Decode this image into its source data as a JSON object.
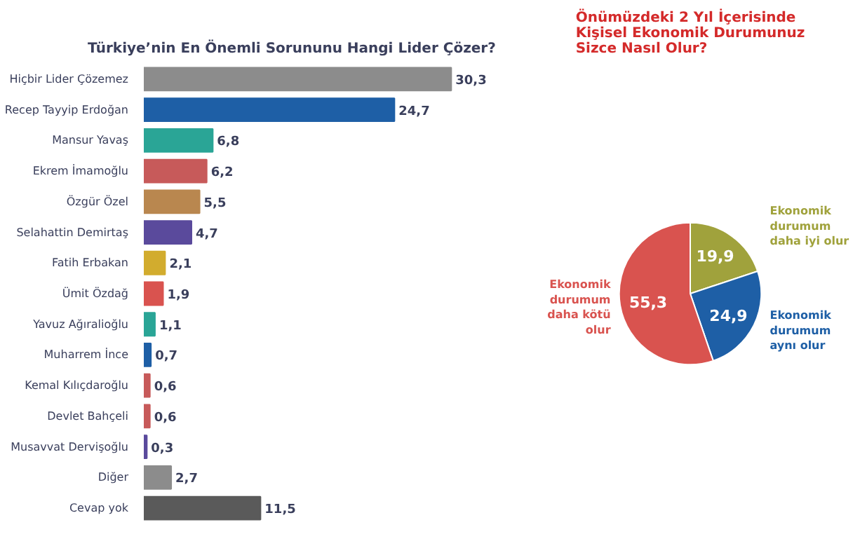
{
  "chart_data": [
    {
      "type": "bar",
      "orientation": "horizontal",
      "title": "Türkiye’nin En Önemli Sorununu Hangi Lider Çözer?",
      "data_labels": true,
      "grid": false,
      "categories": [
        "Hiçbir Lider Çözemez",
        "Recep Tayyip Erdoğan",
        "Mansur Yavaş",
        "Ekrem İmamoğlu",
        "Özgür Özel",
        "Selahattin Demirtaş",
        "Fatih Erbakan",
        "Ümit Özdağ",
        "Yavuz Ağıralioğlu",
        "Muharrem İnce",
        "Kemal Kılıçdaroğlu",
        "Devlet Bahçeli",
        "Musavvat Dervişoğlu",
        "Diğer",
        "Cevap yok"
      ],
      "values": [
        30.3,
        24.7,
        6.8,
        6.2,
        5.5,
        4.7,
        2.1,
        1.9,
        1.1,
        0.7,
        0.6,
        0.6,
        0.3,
        2.7,
        11.5
      ],
      "value_labels": [
        "30,3",
        "24,7",
        "6,8",
        "6,2",
        "5,5",
        "4,7",
        "2,1",
        "1,9",
        "1,1",
        "0,7",
        "0,6",
        "0,6",
        "0,3",
        "2,7",
        "11,5"
      ],
      "colors": [
        "#8c8c8c",
        "#1e5fa6",
        "#2aa596",
        "#c75a5a",
        "#b9874f",
        "#5a4a9c",
        "#d2ac2e",
        "#d9534f",
        "#2aa596",
        "#1e5fa6",
        "#c75a5a",
        "#c75a5a",
        "#5a4a9c",
        "#8c8c8c",
        "#5a5a5a"
      ]
    },
    {
      "type": "pie",
      "title": "Önümüzdeki 2 Yıl İçerisinde\nKişisel Ekonomik Durumunuz\nSizce Nasıl Olur?",
      "data_labels": true,
      "legend": false,
      "categories": [
        "Ekonomik\ndurumum\ndaha iyi olur",
        "Ekonomik\ndurumum\naynı olur",
        "Ekonomik\ndurumum\ndaha kötü\nolur"
      ],
      "values": [
        19.9,
        24.9,
        55.3
      ],
      "value_labels": [
        "19,9",
        "24,9",
        "55,3"
      ],
      "colors": [
        "#a0a23c",
        "#1e5fa6",
        "#d9534f"
      ]
    }
  ]
}
